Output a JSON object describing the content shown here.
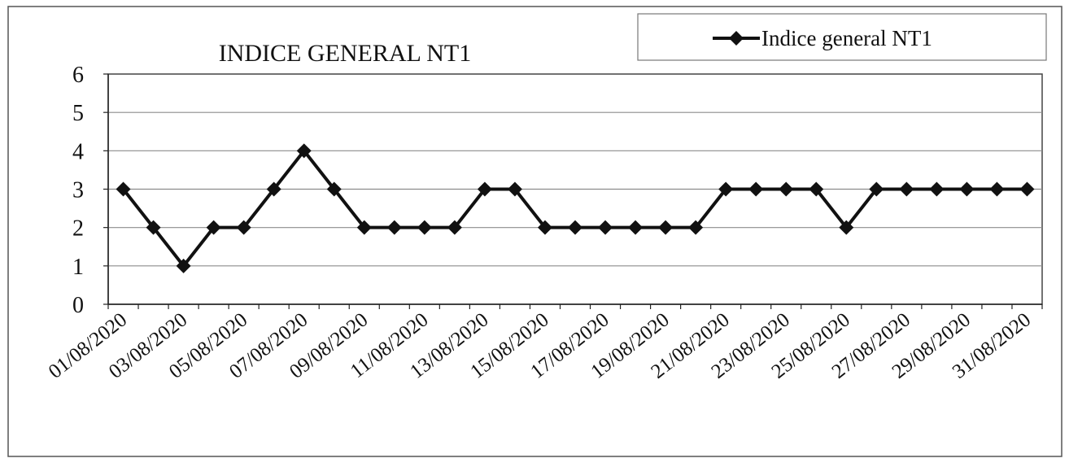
{
  "chart_data": {
    "type": "line",
    "title": "INDICE GENERAL NT1",
    "xlabel": "",
    "ylabel": "",
    "ylim": [
      0,
      6
    ],
    "yticks": [
      0,
      1,
      2,
      3,
      4,
      5,
      6
    ],
    "grid": "horizontal",
    "legend_position": "top-right",
    "colors": {
      "line": "#111111",
      "grid": "#8c8c8c",
      "background": "#ffffff"
    },
    "x_tick_labels": [
      "01/08/2020",
      "03/08/2020",
      "05/08/2020",
      "07/08/2020",
      "09/08/2020",
      "11/08/2020",
      "13/08/2020",
      "15/08/2020",
      "17/08/2020",
      "19/08/2020",
      "21/08/2020",
      "23/08/2020",
      "25/08/2020",
      "27/08/2020",
      "29/08/2020",
      "31/08/2020"
    ],
    "categories": [
      "01/08/2020",
      "02/08/2020",
      "03/08/2020",
      "04/08/2020",
      "05/08/2020",
      "06/08/2020",
      "07/08/2020",
      "08/08/2020",
      "09/08/2020",
      "10/08/2020",
      "11/08/2020",
      "12/08/2020",
      "13/08/2020",
      "14/08/2020",
      "15/08/2020",
      "16/08/2020",
      "17/08/2020",
      "18/08/2020",
      "19/08/2020",
      "20/08/2020",
      "21/08/2020",
      "22/08/2020",
      "23/08/2020",
      "24/08/2020",
      "25/08/2020",
      "26/08/2020",
      "27/08/2020",
      "28/08/2020",
      "29/08/2020",
      "30/08/2020",
      "31/08/2020"
    ],
    "series": [
      {
        "name": "Indice general NT1",
        "marker": "diamond",
        "values": [
          3,
          2,
          1,
          2,
          2,
          3,
          4,
          3,
          2,
          2,
          2,
          2,
          3,
          3,
          2,
          2,
          2,
          2,
          2,
          2,
          3,
          3,
          3,
          3,
          2,
          3,
          3,
          3,
          3,
          3,
          3
        ]
      }
    ]
  }
}
